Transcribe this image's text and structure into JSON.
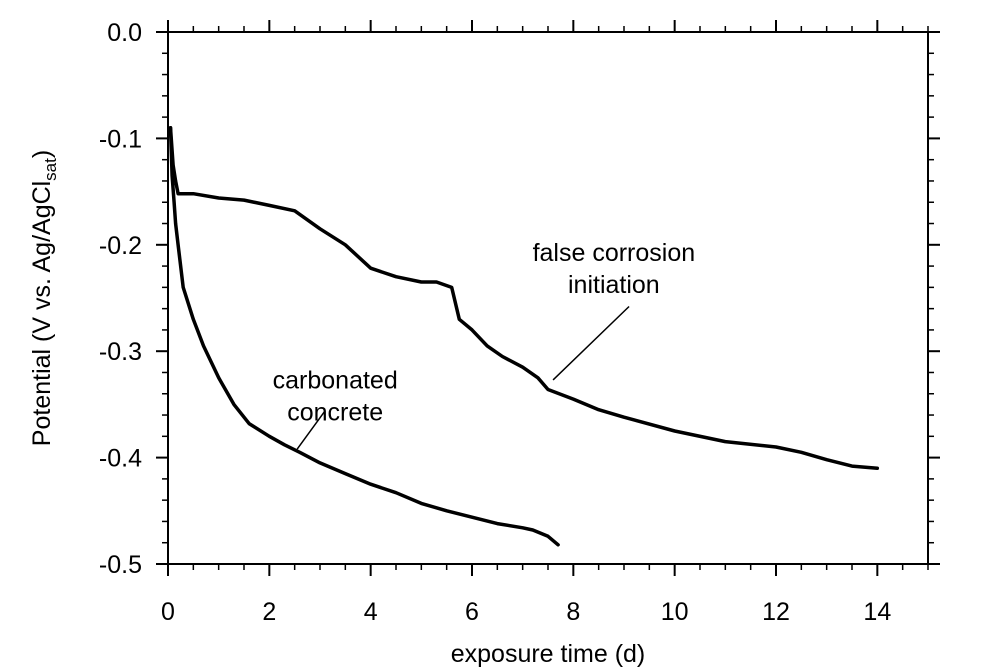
{
  "chart_data": {
    "type": "line",
    "title": "",
    "xlabel": "exposure time (d)",
    "ylabel": "Potential (V vs. Ag/AgCl",
    "ylabel_subscript": "sat",
    "ylabel_close": ")",
    "xlim": [
      0,
      15
    ],
    "ylim": [
      -0.5,
      0.0
    ],
    "x_ticks": [
      0,
      2,
      4,
      6,
      8,
      10,
      12,
      14
    ],
    "x_tick_labels": [
      "0",
      "2",
      "4",
      "6",
      "8",
      "10",
      "12",
      "14"
    ],
    "y_ticks": [
      0.0,
      -0.1,
      -0.2,
      -0.3,
      -0.4,
      -0.5
    ],
    "y_tick_labels": [
      "0.0",
      "-0.1",
      "-0.2",
      "-0.3",
      "-0.4",
      "-0.5"
    ],
    "grid": false,
    "series": [
      {
        "x": [
          0.05,
          0.08,
          0.12,
          0.15,
          0.2,
          0.3,
          0.5,
          0.7,
          1.0,
          1.3,
          1.6,
          2.0,
          2.3,
          2.6,
          3.0,
          3.5,
          4.0,
          4.5,
          5.0,
          5.5,
          6.0,
          6.5,
          7.0,
          7.2,
          7.5,
          7.7
        ],
        "y": [
          -0.09,
          -0.135,
          -0.16,
          -0.18,
          -0.2,
          -0.24,
          -0.27,
          -0.295,
          -0.325,
          -0.35,
          -0.368,
          -0.38,
          -0.388,
          -0.395,
          -0.405,
          -0.415,
          -0.425,
          -0.433,
          -0.443,
          -0.45,
          -0.456,
          -0.462,
          -0.466,
          -0.468,
          -0.474,
          -0.482
        ]
      },
      {
        "x": [
          0.05,
          0.1,
          0.15,
          0.2,
          0.5,
          1.0,
          1.5,
          2.0,
          2.5,
          3.0,
          3.5,
          4.0,
          4.5,
          5.0,
          5.3,
          5.6,
          5.75,
          6.0,
          6.3,
          6.6,
          7.0,
          7.3,
          7.5,
          8.0,
          8.5,
          9.0,
          10.0,
          11.0,
          12.0,
          12.5,
          13.0,
          13.5,
          14.0
        ],
        "y": [
          -0.09,
          -0.125,
          -0.14,
          -0.152,
          -0.152,
          -0.156,
          -0.158,
          -0.163,
          -0.168,
          -0.185,
          -0.2,
          -0.222,
          -0.23,
          -0.235,
          -0.235,
          -0.24,
          -0.27,
          -0.28,
          -0.295,
          -0.305,
          -0.315,
          -0.325,
          -0.336,
          -0.345,
          -0.355,
          -0.362,
          -0.375,
          -0.385,
          -0.39,
          -0.395,
          -0.402,
          -0.408,
          -0.41
        ]
      }
    ],
    "annotations": [
      {
        "lines": [
          "carbonated",
          "concrete"
        ],
        "x": 3.3,
        "y": -0.335,
        "arrow_from": [
          3.1,
          -0.356
        ],
        "arrow_to": [
          2.55,
          -0.392
        ]
      },
      {
        "lines": [
          "false corrosion",
          "initiation"
        ],
        "x": 8.8,
        "y": -0.215,
        "arrow_from": [
          9.1,
          -0.258
        ],
        "arrow_to": [
          7.6,
          -0.327
        ]
      }
    ]
  }
}
